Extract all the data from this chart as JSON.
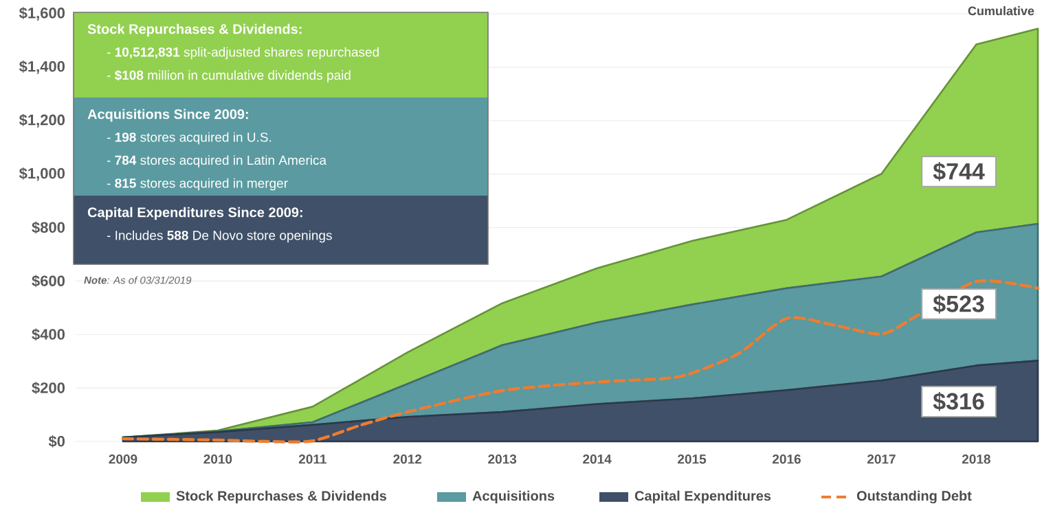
{
  "chart_data": {
    "type": "area",
    "title": "Cumulative",
    "x": [
      2009,
      2010,
      2011,
      2012,
      2013,
      2014,
      2015,
      2016,
      2017,
      2018,
      2018.65
    ],
    "xlim": [
      2008.5,
      2018.65
    ],
    "xticks": [
      2009,
      2010,
      2011,
      2012,
      2013,
      2014,
      2015,
      2016,
      2017,
      2018
    ],
    "ylim": [
      0,
      1600
    ],
    "yticks": [
      {
        "value": 0,
        "label": "$0"
      },
      {
        "value": 200,
        "label": "$200"
      },
      {
        "value": 400,
        "label": "$400"
      },
      {
        "value": 600,
        "label": "$600"
      },
      {
        "value": 800,
        "label": "$800"
      },
      {
        "value": 1000,
        "label": "$1,000"
      },
      {
        "value": 1200,
        "label": "$1,200"
      },
      {
        "value": 1400,
        "label": "$1,400"
      },
      {
        "value": 1600,
        "label": "$1,600"
      }
    ],
    "stacked": true,
    "grid": "y",
    "legend": "bottom",
    "series": [
      {
        "name": "Capital Expenditures",
        "color": "#3f5068",
        "values": [
          15,
          35,
          62,
          92,
          110,
          140,
          161,
          192,
          228,
          284,
          302
        ]
      },
      {
        "name": "Acquisitions",
        "color": "#5a9aa0",
        "values": [
          0,
          3,
          10,
          123,
          250,
          305,
          351,
          381,
          389,
          498,
          512
        ]
      },
      {
        "name": "Stock Repurchases & Dividends",
        "color": "#92d050",
        "values": [
          0,
          3,
          58,
          118,
          157,
          203,
          238,
          256,
          384,
          703,
          730
        ]
      },
      {
        "name": "Outstanding Debt",
        "type": "line",
        "line_style": "dashed",
        "color": "#ed7d31",
        "x": [
          2009,
          2010,
          2010.5,
          2011,
          2011.5,
          2012,
          2013,
          2014,
          2014.7,
          2015,
          2015.5,
          2016,
          2016.5,
          2017,
          2017.35,
          2018,
          2018.65
        ],
        "values": [
          10,
          5,
          0,
          2,
          60,
          110,
          190,
          222,
          235,
          255,
          330,
          460,
          435,
          402,
          465,
          598,
          573
        ]
      }
    ],
    "annotations": [
      "Stock Repurchases & Dividends:",
      "- **10,512,831** split-adjusted shares repurchased",
      "- **$108** million in cumulative dividends paid",
      "Acquisitions Since 2009:",
      "- **198** stores acquired in U.S.",
      "- **784** stores acquired in Latin America",
      "- **815** stores acquired in merger",
      "Capital Expenditures Since 2009:",
      "- Includes **588** De Novo store openings",
      "**Note**: As of 03/31/2019",
      "$744",
      "$523",
      "$316"
    ]
  }
}
